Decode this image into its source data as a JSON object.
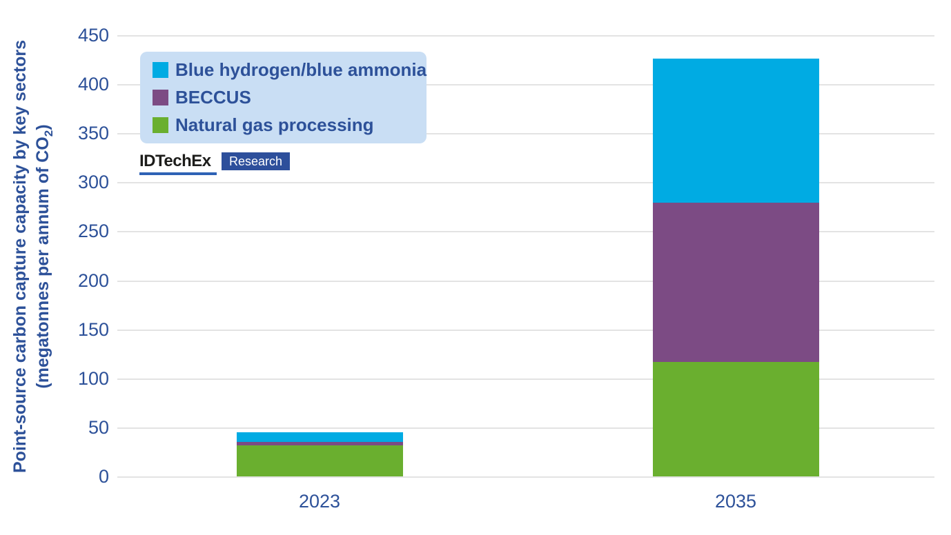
{
  "chart": {
    "y_axis_title_line1": "Point-source carbon capture capacity by key sectors",
    "y_axis_title_line2_prefix": "(megatonnes per annum of CO",
    "y_axis_title_subscript": "2",
    "y_axis_title_line2_suffix": ")"
  },
  "logo": {
    "brand": "IDTechEx",
    "badge": "Research"
  },
  "colors": {
    "blue_series": "#00abe3",
    "purple_series": "#7c4b84",
    "green_series": "#6aaf2f",
    "axis_text": "#2d5199",
    "legend_background": "#c9def4",
    "gridline": "#e3e3e3",
    "badge_background": "#2d4f9b"
  },
  "chart_data": {
    "type": "bar",
    "stacked": true,
    "title": "",
    "categories": [
      "2023",
      "2035"
    ],
    "series": [
      {
        "name": "Blue hydrogen/blue ammonia",
        "color": "#00abe3",
        "values": [
          10,
          147
        ]
      },
      {
        "name": "BECCUS",
        "color": "#7c4b84",
        "values": [
          3,
          162
        ]
      },
      {
        "name": "Natural gas processing",
        "color": "#6aaf2f",
        "values": [
          32,
          117
        ]
      }
    ],
    "stack_order_bottom_to_top": [
      "Natural gas processing",
      "BECCUS",
      "Blue hydrogen/blue ammonia"
    ],
    "totals": [
      45,
      426
    ],
    "xlabel": "",
    "ylabel": "Point-source carbon capture capacity by key sectors (megatonnes per annum of CO₂)",
    "ylim": [
      0,
      450
    ],
    "ytick_step": 50,
    "grid": true,
    "legend_position": "top-left"
  }
}
